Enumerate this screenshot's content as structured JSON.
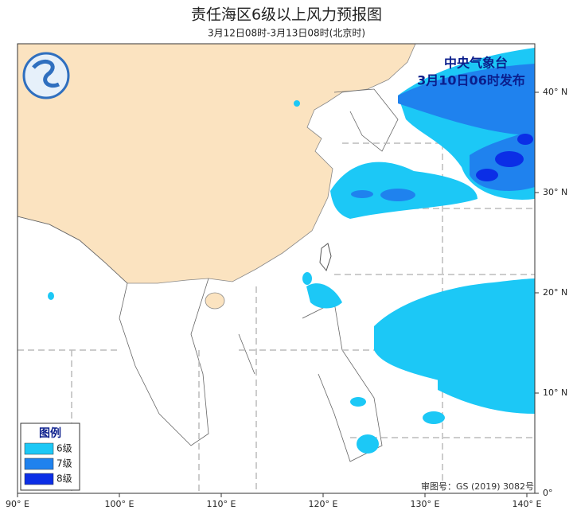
{
  "header": {
    "title": "责任海区6级以上风力预报图",
    "subtitle": "3月12日08时-3月13日08时(北京时)"
  },
  "issuer": {
    "name": "中央气象台",
    "issued": "3月10日06时发布"
  },
  "legend": {
    "title": "图例",
    "items": [
      {
        "label": "6级",
        "color": "#1cc8f6"
      },
      {
        "label": "7级",
        "color": "#1f82ee"
      },
      {
        "label": "8级",
        "color": "#0b2ee6"
      }
    ]
  },
  "map": {
    "lon_ticks": [
      {
        "value": 90,
        "label": "90° E"
      },
      {
        "value": 100,
        "label": "100° E"
      },
      {
        "value": 110,
        "label": "110° E"
      },
      {
        "value": 120,
        "label": "120° E"
      },
      {
        "value": 130,
        "label": "130° E"
      },
      {
        "value": 140,
        "label": "140° E"
      }
    ],
    "lat_ticks": [
      {
        "value": 0,
        "label": "0°"
      },
      {
        "value": 10,
        "label": "10° N"
      },
      {
        "value": 20,
        "label": "20° N"
      },
      {
        "value": 30,
        "label": "30° N"
      },
      {
        "value": 40,
        "label": "40° N"
      }
    ],
    "approval": "审图号：GS (2019) 3082号"
  }
}
